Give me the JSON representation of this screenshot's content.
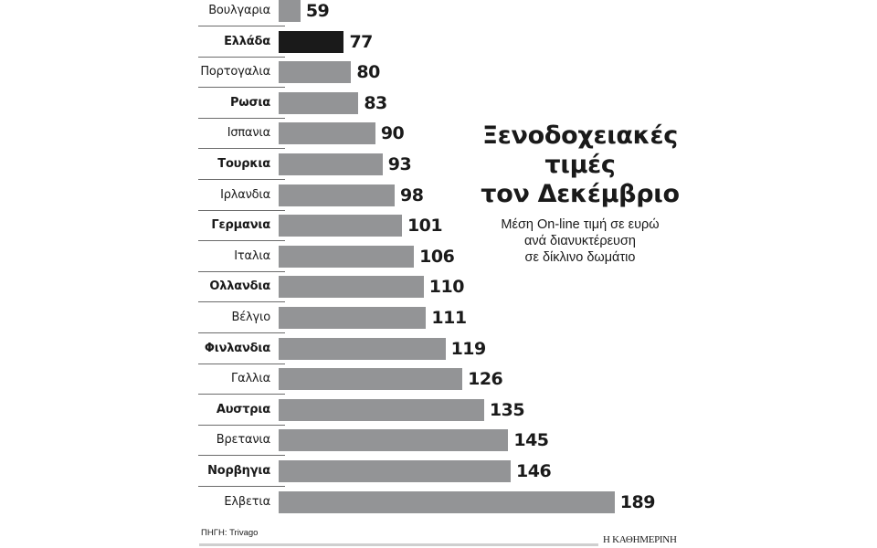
{
  "chart_data": {
    "type": "bar",
    "orientation": "horizontal",
    "title": "Ξενοδοχειακές τιμές τον Δεκέμβριο",
    "subtitle": "Μέση On-line τιμή σε ευρώ ανά διανυκτέρευση σε δίκλινο δωμάτιο",
    "xlabel": "",
    "ylabel": "",
    "unit": "EUR",
    "categories": [
      "Βουλγαρία",
      "Ελλάδα",
      "Πορτογαλία",
      "Ρωσία",
      "Ισπανία",
      "Τουρκία",
      "Ιρλανδία",
      "Γερμανία",
      "Ιταλία",
      "Ολλανδία",
      "Βέλγιο",
      "Φινλανδία",
      "Γαλλία",
      "Αυστρία",
      "Βρετανία",
      "Νορβηγία",
      "Ελβετία"
    ],
    "values": [
      59,
      77,
      80,
      83,
      90,
      93,
      98,
      101,
      106,
      110,
      111,
      119,
      126,
      135,
      145,
      146,
      189
    ],
    "highlight": "Ελλάδα",
    "grid": false,
    "legend": null,
    "source": "ΠΗΓΗ: Trivago"
  },
  "rows": [
    {
      "label": "Βουλγαρια",
      "value": 59,
      "bold": false,
      "highlight": false
    },
    {
      "label": "Ελλάδα",
      "value": 77,
      "bold": true,
      "highlight": true
    },
    {
      "label": "Πορτογαλια",
      "value": 80,
      "bold": false,
      "highlight": false
    },
    {
      "label": "Ρωσια",
      "value": 83,
      "bold": true,
      "highlight": false
    },
    {
      "label": "Ισπανια",
      "value": 90,
      "bold": false,
      "highlight": false
    },
    {
      "label": "Τουρκια",
      "value": 93,
      "bold": true,
      "highlight": false
    },
    {
      "label": "Ιρλανδια",
      "value": 98,
      "bold": false,
      "highlight": false
    },
    {
      "label": "Γερμανια",
      "value": 101,
      "bold": true,
      "highlight": false
    },
    {
      "label": "Ιταλια",
      "value": 106,
      "bold": false,
      "highlight": false
    },
    {
      "label": "Ολλανδια",
      "value": 110,
      "bold": true,
      "highlight": false
    },
    {
      "label": "Βέλγιο",
      "value": 111,
      "bold": false,
      "highlight": false
    },
    {
      "label": "Φινλανδια",
      "value": 119,
      "bold": true,
      "highlight": false
    },
    {
      "label": "Γαλλια",
      "value": 126,
      "bold": false,
      "highlight": false
    },
    {
      "label": "Αυστρια",
      "value": 135,
      "bold": true,
      "highlight": false
    },
    {
      "label": "Βρετανια",
      "value": 145,
      "bold": false,
      "highlight": false
    },
    {
      "label": "Νορβηγια",
      "value": 146,
      "bold": true,
      "highlight": false
    },
    {
      "label": "Ελβετια",
      "value": 189,
      "bold": false,
      "highlight": false
    }
  ],
  "title_lines": [
    "Ξενοδοχειακές",
    "τιμές",
    "τον Δεκέμβριο"
  ],
  "subtitle_lines": [
    "Μέση On-line τιμή σε ευρώ",
    "ανά διανυκτέρευση",
    "σε δίκλινο δωμάτιο"
  ],
  "footer": {
    "source": "ΠΗΓΗ: Trivago",
    "brand": "Η ΚΑΘΗΜΕΡΙΝΗ"
  },
  "colors": {
    "bar": "#939496",
    "highlight_bar": "#1a1a1a",
    "text": "#1a1a1a",
    "footer_line": "#cfcfcf"
  }
}
